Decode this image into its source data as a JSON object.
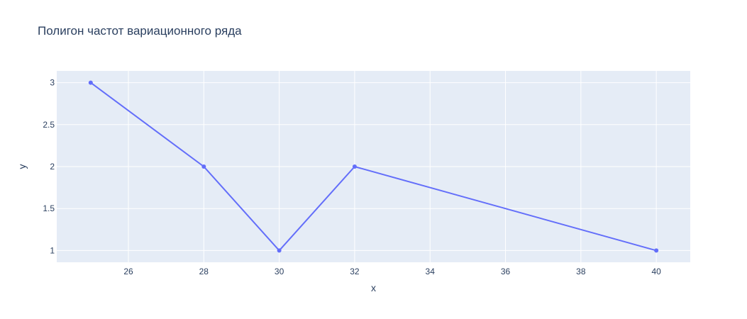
{
  "chart_data": {
    "type": "line",
    "title": "Полигон частот вариационного ряда",
    "xlabel": "x",
    "ylabel": "y",
    "xlim": [
      24.1,
      40.9
    ],
    "ylim": [
      0.86,
      3.14
    ],
    "x_ticks": [
      26,
      28,
      30,
      32,
      34,
      36,
      38,
      40
    ],
    "y_ticks": [
      1,
      1.5,
      2,
      2.5,
      3
    ],
    "grid": true,
    "legend": "none",
    "series": [
      {
        "x": [
          25,
          28,
          30,
          32,
          40
        ],
        "y": [
          3,
          2,
          1,
          2,
          1
        ],
        "mode": "lines+markers"
      }
    ],
    "colors": {
      "line": "#636efa",
      "plot_bg": "#e5ecf6",
      "grid": "#ffffff",
      "text": "#2a3f5f"
    }
  }
}
